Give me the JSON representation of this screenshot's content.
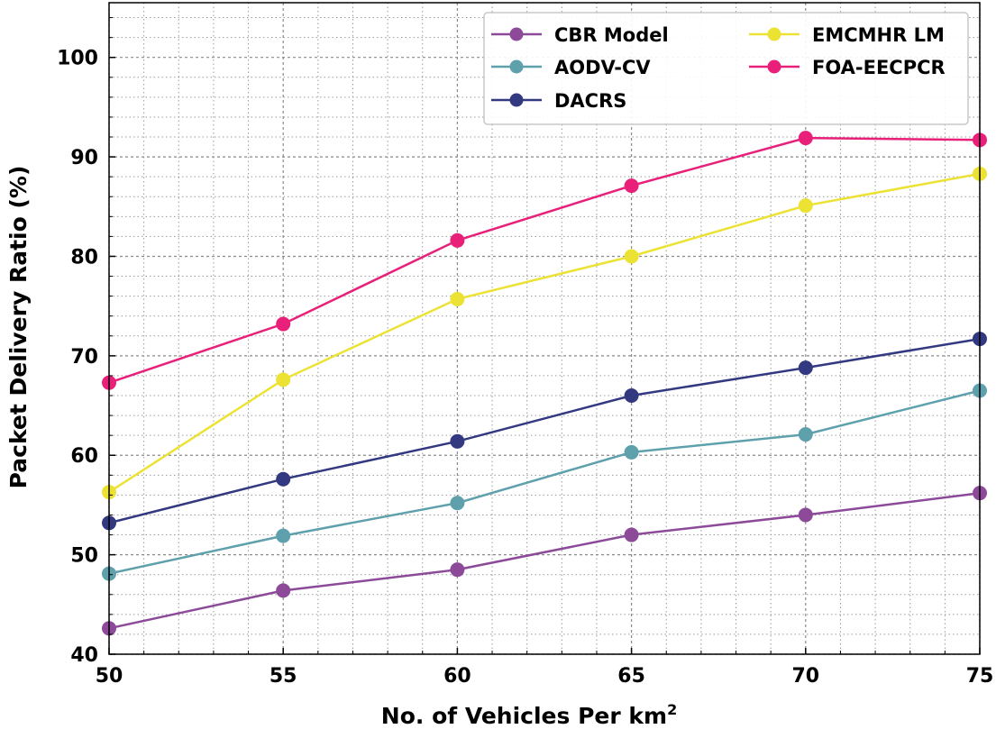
{
  "chart_data": {
    "type": "line",
    "title": "",
    "xlabel": "No. of Vehicles Per km",
    "xlabel_superscript": "2",
    "ylabel": "Packet Delivery Ratio (%)",
    "x": [
      50,
      55,
      60,
      65,
      70,
      75
    ],
    "x_ticks": [
      "50",
      "55",
      "60",
      "65",
      "70",
      "75"
    ],
    "y_ticks": [
      "40",
      "50",
      "60",
      "70",
      "80",
      "90",
      "100"
    ],
    "xlim": [
      50,
      75
    ],
    "ylim": [
      40,
      105.5
    ],
    "grid": true,
    "minor_grid": true,
    "legend_position": "upper-right",
    "series": [
      {
        "name": "CBR Model",
        "color": "#8c4a99",
        "values": [
          42.6,
          46.4,
          48.5,
          52.0,
          54.0,
          56.2
        ]
      },
      {
        "name": "AODV-CV",
        "color": "#5fa0ad",
        "values": [
          48.1,
          51.9,
          55.2,
          60.3,
          62.1,
          66.5
        ]
      },
      {
        "name": "DACRS",
        "color": "#333980",
        "values": [
          53.2,
          57.6,
          61.4,
          66.0,
          68.8,
          71.7
        ]
      },
      {
        "name": "EMCMHR LM",
        "color": "#ece234",
        "values": [
          56.3,
          67.6,
          75.7,
          80.0,
          85.1,
          88.3
        ]
      },
      {
        "name": "FOA-EECPCR",
        "color": "#e8207a",
        "values": [
          67.3,
          73.2,
          81.6,
          87.1,
          91.9,
          91.7
        ]
      }
    ]
  }
}
